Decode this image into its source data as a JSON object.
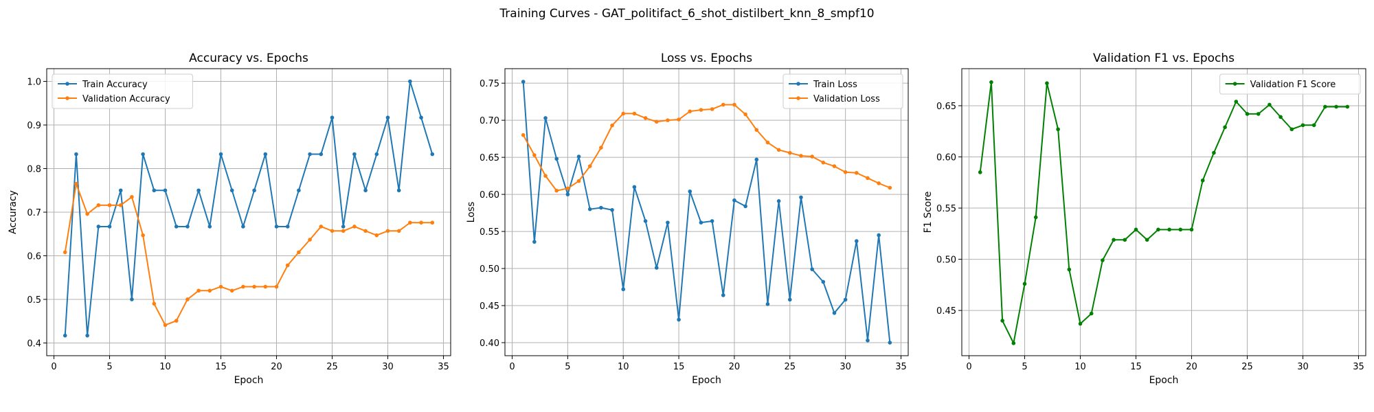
{
  "figure_title": "Training Curves - GAT_politifact_6_shot_distilbert_knn_8_smpf10",
  "chart_data": [
    {
      "type": "line",
      "title": "Accuracy vs. Epochs",
      "xlabel": "Epoch",
      "ylabel": "Accuracy",
      "xlim": [
        -0.65,
        35.65
      ],
      "ylim": [
        0.3708,
        1.0292
      ],
      "xticks": [
        0,
        5,
        10,
        15,
        20,
        25,
        30,
        35
      ],
      "yticks": [
        0.4,
        0.5,
        0.6,
        0.7,
        0.8,
        0.9,
        1.0
      ],
      "ytick_labels": [
        "0.4",
        "0.5",
        "0.6",
        "0.7",
        "0.8",
        "0.9",
        "1.0"
      ],
      "grid": true,
      "legend_position": "upper-left",
      "x": [
        1,
        2,
        3,
        4,
        5,
        6,
        7,
        8,
        9,
        10,
        11,
        12,
        13,
        14,
        15,
        16,
        17,
        18,
        19,
        20,
        21,
        22,
        23,
        24,
        25,
        26,
        27,
        28,
        29,
        30,
        31,
        32,
        33,
        34
      ],
      "series": [
        {
          "name": "Train Accuracy",
          "color": "#1f77b4",
          "values": [
            0.417,
            0.833,
            0.417,
            0.667,
            0.667,
            0.75,
            0.5,
            0.833,
            0.75,
            0.75,
            0.667,
            0.667,
            0.75,
            0.667,
            0.833,
            0.75,
            0.667,
            0.75,
            0.833,
            0.667,
            0.667,
            0.75,
            0.833,
            0.833,
            0.917,
            0.667,
            0.833,
            0.75,
            0.833,
            0.917,
            0.75,
            1.0,
            0.917,
            0.833
          ]
        },
        {
          "name": "Validation Accuracy",
          "color": "#ff7f0e",
          "values": [
            0.608,
            0.765,
            0.696,
            0.716,
            0.716,
            0.716,
            0.735,
            0.647,
            0.49,
            0.441,
            0.451,
            0.5,
            0.52,
            0.52,
            0.529,
            0.52,
            0.529,
            0.529,
            0.529,
            0.529,
            0.578,
            0.608,
            0.637,
            0.667,
            0.657,
            0.657,
            0.667,
            0.657,
            0.647,
            0.657,
            0.657,
            0.676,
            0.676,
            0.676
          ]
        }
      ]
    },
    {
      "type": "line",
      "title": "Loss vs. Epochs",
      "xlabel": "Epoch",
      "ylabel": "Loss",
      "xlim": [
        -0.65,
        35.65
      ],
      "ylim": [
        0.3824,
        0.7696
      ],
      "xticks": [
        0,
        5,
        10,
        15,
        20,
        25,
        30,
        35
      ],
      "yticks": [
        0.4,
        0.45,
        0.5,
        0.55,
        0.6,
        0.65,
        0.7,
        0.75
      ],
      "ytick_labels": [
        "0.40",
        "0.45",
        "0.50",
        "0.55",
        "0.60",
        "0.65",
        "0.70",
        "0.75"
      ],
      "grid": true,
      "legend_position": "upper-right",
      "x": [
        1,
        2,
        3,
        4,
        5,
        6,
        7,
        8,
        9,
        10,
        11,
        12,
        13,
        14,
        15,
        16,
        17,
        18,
        19,
        20,
        21,
        22,
        23,
        24,
        25,
        26,
        27,
        28,
        29,
        30,
        31,
        32,
        33,
        34
      ],
      "series": [
        {
          "name": "Train Loss",
          "color": "#1f77b4",
          "values": [
            0.752,
            0.536,
            0.703,
            0.648,
            0.6,
            0.651,
            0.58,
            0.582,
            0.579,
            0.472,
            0.61,
            0.564,
            0.501,
            0.562,
            0.431,
            0.604,
            0.562,
            0.564,
            0.464,
            0.592,
            0.584,
            0.647,
            0.452,
            0.591,
            0.458,
            0.596,
            0.499,
            0.482,
            0.44,
            0.458,
            0.537,
            0.403,
            0.545,
            0.4
          ]
        },
        {
          "name": "Validation Loss",
          "color": "#ff7f0e",
          "values": [
            0.68,
            0.653,
            0.625,
            0.605,
            0.608,
            0.618,
            0.638,
            0.663,
            0.693,
            0.709,
            0.709,
            0.703,
            0.698,
            0.7,
            0.701,
            0.712,
            0.714,
            0.715,
            0.721,
            0.721,
            0.708,
            0.687,
            0.67,
            0.66,
            0.656,
            0.652,
            0.651,
            0.643,
            0.638,
            0.63,
            0.629,
            0.622,
            0.615,
            0.609
          ]
        }
      ]
    },
    {
      "type": "line",
      "title": "Validation F1 vs. Epochs",
      "xlabel": "Epoch",
      "ylabel": "F1 Score",
      "xlim": [
        -0.65,
        35.65
      ],
      "ylim": [
        0.4058,
        0.6862
      ],
      "xticks": [
        0,
        5,
        10,
        15,
        20,
        25,
        30,
        35
      ],
      "yticks": [
        0.45,
        0.5,
        0.55,
        0.6,
        0.65
      ],
      "ytick_labels": [
        "0.45",
        "0.50",
        "0.55",
        "0.60",
        "0.65"
      ],
      "grid": true,
      "legend_position": "upper-right",
      "x": [
        1,
        2,
        3,
        4,
        5,
        6,
        7,
        8,
        9,
        10,
        11,
        12,
        13,
        14,
        15,
        16,
        17,
        18,
        19,
        20,
        21,
        22,
        23,
        24,
        25,
        26,
        27,
        28,
        29,
        30,
        31,
        32,
        33,
        34
      ],
      "series": [
        {
          "name": "Validation F1 Score",
          "color": "#008000",
          "values": [
            0.585,
            0.673,
            0.44,
            0.418,
            0.476,
            0.541,
            0.672,
            0.627,
            0.49,
            0.437,
            0.447,
            0.499,
            0.519,
            0.519,
            0.529,
            0.519,
            0.529,
            0.529,
            0.529,
            0.529,
            0.577,
            0.604,
            0.629,
            0.654,
            0.642,
            0.642,
            0.651,
            0.639,
            0.627,
            0.631,
            0.631,
            0.649,
            0.649,
            0.649
          ]
        }
      ]
    }
  ]
}
